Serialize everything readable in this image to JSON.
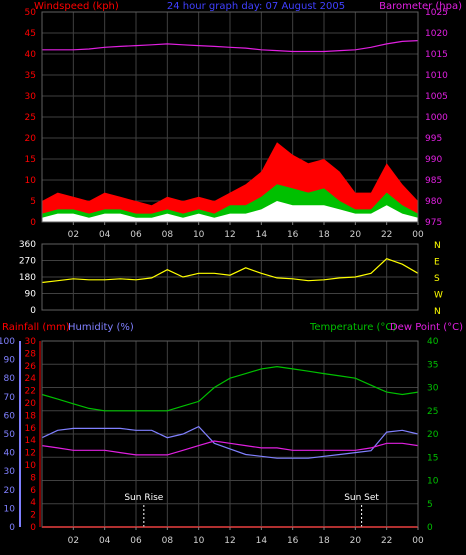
{
  "header": {
    "windspeed_label": "Windspeed (kph)",
    "graph_title": "24 hour graph day: 07 August 2005",
    "barometer_label": "Barometer (hpa)"
  },
  "middle_header": {
    "rainfall_label": "Rainfall (mm)",
    "humidity_label": "Humidity (%)",
    "temperature_label": "Temperature (°C)",
    "dewpoint_label": "Dew Point (°C)"
  },
  "colors": {
    "wind_red": "#ff0000",
    "wind_green": "#00c000",
    "wind_white": "#ffffff",
    "barometer": "#e020e0",
    "direction": "#ffff00",
    "humidity": "#8080ff",
    "temperature": "#00c000",
    "dewpoint": "#e020e0",
    "rainfall": "#ff0000",
    "axis": "#8080ff",
    "grid": "#404040"
  },
  "chart_data": [
    {
      "id": "wind",
      "type": "area",
      "title": "24 hour graph day: 07 August 2005",
      "xlabel": "",
      "ylabel": "Windspeed (kph)",
      "y2label": "Barometer (hpa)",
      "x_ticks": [
        "02",
        "04",
        "06",
        "08",
        "10",
        "12",
        "14",
        "16",
        "18",
        "20",
        "22",
        "00"
      ],
      "ylim": [
        0,
        50
      ],
      "y_ticks": [
        0,
        5,
        10,
        15,
        20,
        25,
        30,
        35,
        40,
        45,
        50
      ],
      "y2lim": [
        975,
        1025
      ],
      "y2_ticks": [
        975,
        980,
        985,
        990,
        995,
        1000,
        1005,
        1010,
        1015,
        1020,
        1025
      ],
      "grid": true,
      "x": [
        0,
        1,
        2,
        3,
        4,
        5,
        6,
        7,
        8,
        9,
        10,
        11,
        12,
        13,
        14,
        15,
        16,
        17,
        18,
        19,
        20,
        21,
        22,
        23,
        24
      ],
      "series": [
        {
          "name": "Windspeed (kph)",
          "role": "gust",
          "color": "#ff0000",
          "values": [
            5,
            7,
            6,
            5,
            7,
            6,
            5,
            4,
            6,
            5,
            6,
            5,
            7,
            9,
            12,
            19,
            16,
            14,
            15,
            12,
            7,
            7,
            14,
            9,
            5
          ]
        },
        {
          "name": "",
          "role": "average",
          "color": "#00c000",
          "values": [
            2,
            3,
            3,
            2,
            3,
            3,
            2,
            2,
            3,
            2,
            3,
            2,
            4,
            4,
            6,
            9,
            8,
            7,
            8,
            5,
            3,
            3,
            7,
            4,
            2
          ]
        },
        {
          "name": "",
          "role": "lull",
          "color": "#ffffff",
          "values": [
            1,
            2,
            2,
            1,
            2,
            2,
            1,
            1,
            2,
            1,
            2,
            1,
            2,
            2,
            3,
            5,
            4,
            4,
            4,
            3,
            2,
            2,
            4,
            2,
            1
          ]
        },
        {
          "name": "Barometer (hpa)",
          "role": "pressure",
          "color": "#e020e0",
          "values": [
            1016,
            1016,
            1016,
            1016.2,
            1016.6,
            1016.8,
            1017,
            1017.2,
            1017.4,
            1017.2,
            1017,
            1016.8,
            1016.6,
            1016.4,
            1016,
            1015.8,
            1015.6,
            1015.6,
            1015.6,
            1015.8,
            1016,
            1016.6,
            1017.4,
            1018,
            1018.2
          ]
        }
      ]
    },
    {
      "id": "direction",
      "type": "line",
      "title": "",
      "xlabel": "",
      "ylabel": "",
      "ylim": [
        0,
        360
      ],
      "y_ticks": [
        0,
        90,
        180,
        270,
        360
      ],
      "y2_tick_labels": [
        "N",
        "W",
        "S",
        "E",
        "N"
      ],
      "grid": true,
      "x": [
        0,
        1,
        2,
        3,
        4,
        5,
        6,
        7,
        8,
        9,
        10,
        11,
        12,
        13,
        14,
        15,
        16,
        17,
        18,
        19,
        20,
        21,
        22,
        23,
        24
      ],
      "series": [
        {
          "name": "",
          "color": "#ffff00",
          "values": [
            150,
            160,
            170,
            165,
            165,
            170,
            165,
            175,
            220,
            180,
            200,
            200,
            190,
            230,
            200,
            175,
            170,
            160,
            165,
            175,
            180,
            200,
            280,
            250,
            200
          ]
        }
      ]
    },
    {
      "id": "climate",
      "type": "line",
      "title": "",
      "xlabel": "",
      "ylabel": "Rainfall (mm)",
      "y2label": "Temperature (°C)",
      "x_ticks": [
        "02",
        "04",
        "06",
        "08",
        "10",
        "12",
        "14",
        "16",
        "18",
        "20",
        "22",
        "00"
      ],
      "ylim_rain": [
        0,
        30
      ],
      "y_ticks_rain": [
        0,
        2,
        4,
        6,
        8,
        10,
        12,
        14,
        16,
        18,
        20,
        22,
        24,
        26,
        28,
        30
      ],
      "ylim_humidity": [
        0,
        100
      ],
      "y_ticks_humidity": [
        0,
        10,
        20,
        30,
        40,
        50,
        60,
        70,
        80,
        90,
        100
      ],
      "ylim_temp": [
        0,
        40
      ],
      "y_ticks_temp": [
        0,
        5,
        10,
        15,
        20,
        25,
        30,
        35,
        40
      ],
      "grid": true,
      "x": [
        0,
        1,
        2,
        3,
        4,
        5,
        6,
        7,
        8,
        9,
        10,
        11,
        12,
        13,
        14,
        15,
        16,
        17,
        18,
        19,
        20,
        21,
        22,
        23,
        24
      ],
      "annotations": [
        {
          "label": "Sun Rise",
          "x": 6.5
        },
        {
          "label": "Sun Set",
          "x": 20.4
        }
      ],
      "series": [
        {
          "name": "Temperature (°C)",
          "axis": "temp",
          "color": "#00c000",
          "values": [
            28.5,
            27.5,
            26.5,
            25.5,
            25,
            25,
            25,
            25,
            25,
            26,
            27,
            30,
            32,
            33,
            34,
            34.5,
            34,
            33.5,
            33,
            32.5,
            32,
            30.5,
            29,
            28.5,
            29
          ]
        },
        {
          "name": "Humidity (%)",
          "axis": "humidity",
          "color": "#8080ff",
          "values": [
            48,
            52,
            53,
            53,
            53,
            53,
            52,
            52,
            48,
            50,
            54,
            45,
            42,
            39,
            38,
            37,
            37,
            37,
            38,
            39,
            40,
            41,
            51,
            52,
            50
          ]
        },
        {
          "name": "Dew Point (°C)",
          "axis": "temp",
          "color": "#e020e0",
          "values": [
            17.5,
            17,
            16.5,
            16.5,
            16.5,
            16,
            15.5,
            15.5,
            15.5,
            16.5,
            17.5,
            18.5,
            18,
            17.5,
            17,
            17,
            16.5,
            16.5,
            16.5,
            16.5,
            16.5,
            17,
            18,
            18,
            17.5
          ]
        },
        {
          "name": "Rainfall (mm)",
          "axis": "rain",
          "color": "#ff0000",
          "values": [
            0,
            0,
            0,
            0,
            0,
            0,
            0,
            0,
            0,
            0,
            0,
            0,
            0,
            0,
            0,
            0,
            0,
            0,
            0,
            0,
            0,
            0,
            0,
            0,
            0
          ]
        }
      ]
    }
  ]
}
